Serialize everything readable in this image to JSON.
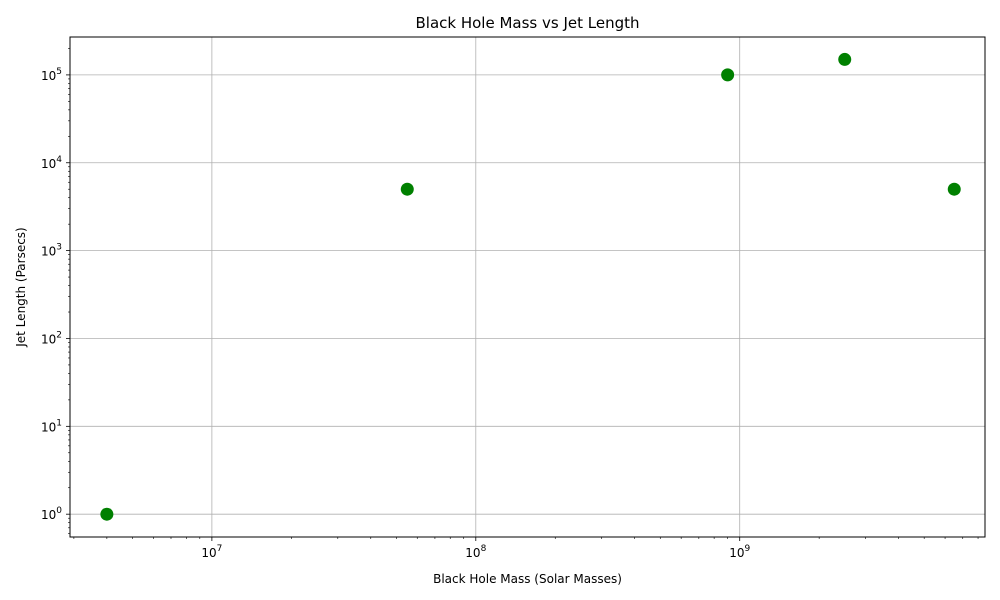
{
  "chart_data": {
    "type": "scatter",
    "title": "Black Hole Mass vs Jet Length",
    "xlabel": "Black Hole Mass (Solar Masses)",
    "ylabel": "Jet Length (Parsecs)",
    "xscale": "log",
    "yscale": "log",
    "xlim": [
      2900000.0,
      8500000000.0
    ],
    "ylim": [
      0.55,
      270000
    ],
    "grid": true,
    "marker_color": "#008000",
    "x_ticks": [
      {
        "value": 10000000.0,
        "base": "10",
        "exp": "7"
      },
      {
        "value": 100000000.0,
        "base": "10",
        "exp": "8"
      },
      {
        "value": 1000000000.0,
        "base": "10",
        "exp": "9"
      }
    ],
    "y_ticks": [
      {
        "value": 1,
        "base": "10",
        "exp": "0"
      },
      {
        "value": 10,
        "base": "10",
        "exp": "1"
      },
      {
        "value": 100,
        "base": "10",
        "exp": "2"
      },
      {
        "value": 1000,
        "base": "10",
        "exp": "3"
      },
      {
        "value": 10000,
        "base": "10",
        "exp": "4"
      },
      {
        "value": 100000,
        "base": "10",
        "exp": "5"
      }
    ],
    "points": [
      {
        "x": 4000000.0,
        "y": 1
      },
      {
        "x": 55000000.0,
        "y": 5000
      },
      {
        "x": 900000000.0,
        "y": 100000
      },
      {
        "x": 2500000000.0,
        "y": 150000
      },
      {
        "x": 6500000000.0,
        "y": 5000
      }
    ]
  }
}
